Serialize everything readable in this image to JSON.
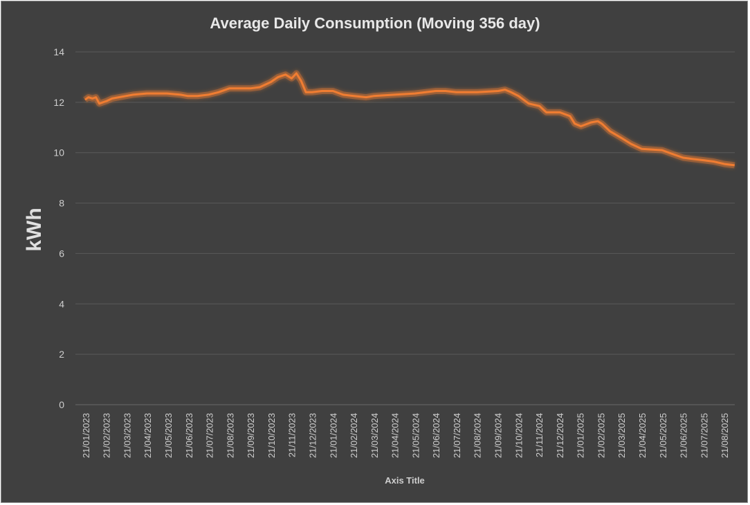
{
  "chart_data": {
    "type": "line",
    "title": "Average Daily Consumption  (Moving 356 day)",
    "xlabel": "Axis Title",
    "ylabel": "kWh",
    "ylim": [
      0,
      14
    ],
    "yticks": [
      0,
      2,
      4,
      6,
      8,
      10,
      12,
      14
    ],
    "grid": true,
    "legend": "none",
    "x_tick_labels": [
      "21/01/2023",
      "21/02/2023",
      "21/03/2023",
      "21/04/2023",
      "21/05/2023",
      "21/06/2023",
      "21/07/2023",
      "21/08/2023",
      "21/09/2023",
      "21/10/2023",
      "21/11/2023",
      "21/12/2023",
      "21/01/2024",
      "21/02/2024",
      "21/03/2024",
      "21/04/2024",
      "21/05/2024",
      "21/06/2024",
      "21/07/2024",
      "21/08/2024",
      "21/09/2024",
      "21/10/2024",
      "21/11/2024",
      "21/12/2024",
      "21/01/2025",
      "21/02/2025",
      "21/03/2025",
      "21/04/2025",
      "21/05/2025",
      "21/06/2025",
      "21/07/2025",
      "21/08/2025"
    ],
    "series": [
      {
        "color": "#f07d32",
        "points": [
          [
            "2023-01-20",
            12.1
          ],
          [
            "2023-01-25",
            12.2
          ],
          [
            "2023-01-31",
            12.15
          ],
          [
            "2023-02-05",
            12.2
          ],
          [
            "2023-02-10",
            11.95
          ],
          [
            "2023-02-21",
            12.05
          ],
          [
            "2023-03-01",
            12.15
          ],
          [
            "2023-03-21",
            12.25
          ],
          [
            "2023-04-01",
            12.3
          ],
          [
            "2023-04-21",
            12.35
          ],
          [
            "2023-05-21",
            12.35
          ],
          [
            "2023-06-10",
            12.3
          ],
          [
            "2023-06-21",
            12.25
          ],
          [
            "2023-07-05",
            12.25
          ],
          [
            "2023-07-21",
            12.3
          ],
          [
            "2023-08-05",
            12.4
          ],
          [
            "2023-08-21",
            12.55
          ],
          [
            "2023-09-21",
            12.55
          ],
          [
            "2023-10-05",
            12.6
          ],
          [
            "2023-10-21",
            12.8
          ],
          [
            "2023-11-01",
            13.0
          ],
          [
            "2023-11-12",
            13.1
          ],
          [
            "2023-11-21",
            12.95
          ],
          [
            "2023-11-28",
            13.15
          ],
          [
            "2023-12-05",
            12.85
          ],
          [
            "2023-12-12",
            12.4
          ],
          [
            "2023-12-21",
            12.4
          ],
          [
            "2024-01-05",
            12.45
          ],
          [
            "2024-01-21",
            12.45
          ],
          [
            "2024-02-05",
            12.3
          ],
          [
            "2024-02-21",
            12.25
          ],
          [
            "2024-03-10",
            12.2
          ],
          [
            "2024-03-21",
            12.25
          ],
          [
            "2024-04-21",
            12.3
          ],
          [
            "2024-05-21",
            12.35
          ],
          [
            "2024-06-21",
            12.45
          ],
          [
            "2024-07-05",
            12.45
          ],
          [
            "2024-07-21",
            12.4
          ],
          [
            "2024-08-21",
            12.4
          ],
          [
            "2024-09-21",
            12.45
          ],
          [
            "2024-10-01",
            12.5
          ],
          [
            "2024-10-10",
            12.4
          ],
          [
            "2024-10-21",
            12.25
          ],
          [
            "2024-11-05",
            11.95
          ],
          [
            "2024-11-21",
            11.85
          ],
          [
            "2024-12-01",
            11.6
          ],
          [
            "2024-12-21",
            11.6
          ],
          [
            "2025-01-05",
            11.45
          ],
          [
            "2025-01-12",
            11.15
          ],
          [
            "2025-01-21",
            11.05
          ],
          [
            "2025-02-05",
            11.2
          ],
          [
            "2025-02-15",
            11.25
          ],
          [
            "2025-02-21",
            11.15
          ],
          [
            "2025-03-05",
            10.85
          ],
          [
            "2025-03-21",
            10.6
          ],
          [
            "2025-04-05",
            10.35
          ],
          [
            "2025-04-21",
            10.15
          ],
          [
            "2025-05-21",
            10.1
          ],
          [
            "2025-06-05",
            9.95
          ],
          [
            "2025-06-21",
            9.8
          ],
          [
            "2025-07-05",
            9.75
          ],
          [
            "2025-07-21",
            9.7
          ],
          [
            "2025-08-05",
            9.65
          ],
          [
            "2025-08-21",
            9.55
          ],
          [
            "2025-09-05",
            9.5
          ]
        ]
      }
    ]
  }
}
